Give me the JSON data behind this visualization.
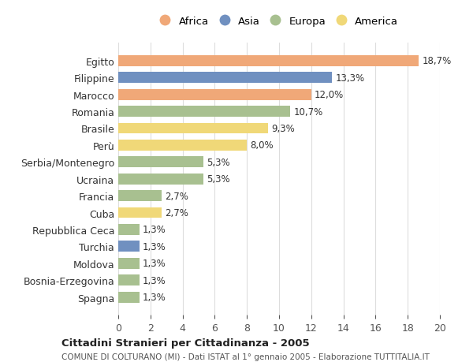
{
  "categories": [
    "Egitto",
    "Filippine",
    "Marocco",
    "Romania",
    "Brasile",
    "Perù",
    "Serbia/Montenegro",
    "Ucraina",
    "Francia",
    "Cuba",
    "Repubblica Ceca",
    "Turchia",
    "Moldova",
    "Bosnia-Erzegovina",
    "Spagna"
  ],
  "values": [
    18.7,
    13.3,
    12.0,
    10.7,
    9.3,
    8.0,
    5.3,
    5.3,
    2.7,
    2.7,
    1.3,
    1.3,
    1.3,
    1.3,
    1.3
  ],
  "labels": [
    "18,7%",
    "13,3%",
    "12,0%",
    "10,7%",
    "9,3%",
    "8,0%",
    "5,3%",
    "5,3%",
    "2,7%",
    "2,7%",
    "1,3%",
    "1,3%",
    "1,3%",
    "1,3%",
    "1,3%"
  ],
  "continents": [
    "Africa",
    "Asia",
    "Africa",
    "Europa",
    "America",
    "America",
    "Europa",
    "Europa",
    "Europa",
    "America",
    "Europa",
    "Asia",
    "Europa",
    "Europa",
    "Europa"
  ],
  "colors": {
    "Africa": "#F0A878",
    "Asia": "#7090C0",
    "Europa": "#A8C090",
    "America": "#F0D878"
  },
  "legend_order": [
    "Africa",
    "Asia",
    "Europa",
    "America"
  ],
  "title": "Cittadini Stranieri per Cittadinanza - 2005",
  "subtitle": "COMUNE DI COLTURANO (MI) - Dati ISTAT al 1° gennaio 2005 - Elaborazione TUTTITALIA.IT",
  "xlim": [
    0,
    20
  ],
  "xticks": [
    0,
    2,
    4,
    6,
    8,
    10,
    12,
    14,
    16,
    18,
    20
  ],
  "bg_color": "#ffffff",
  "grid_color": "#dddddd",
  "bar_height": 0.65
}
